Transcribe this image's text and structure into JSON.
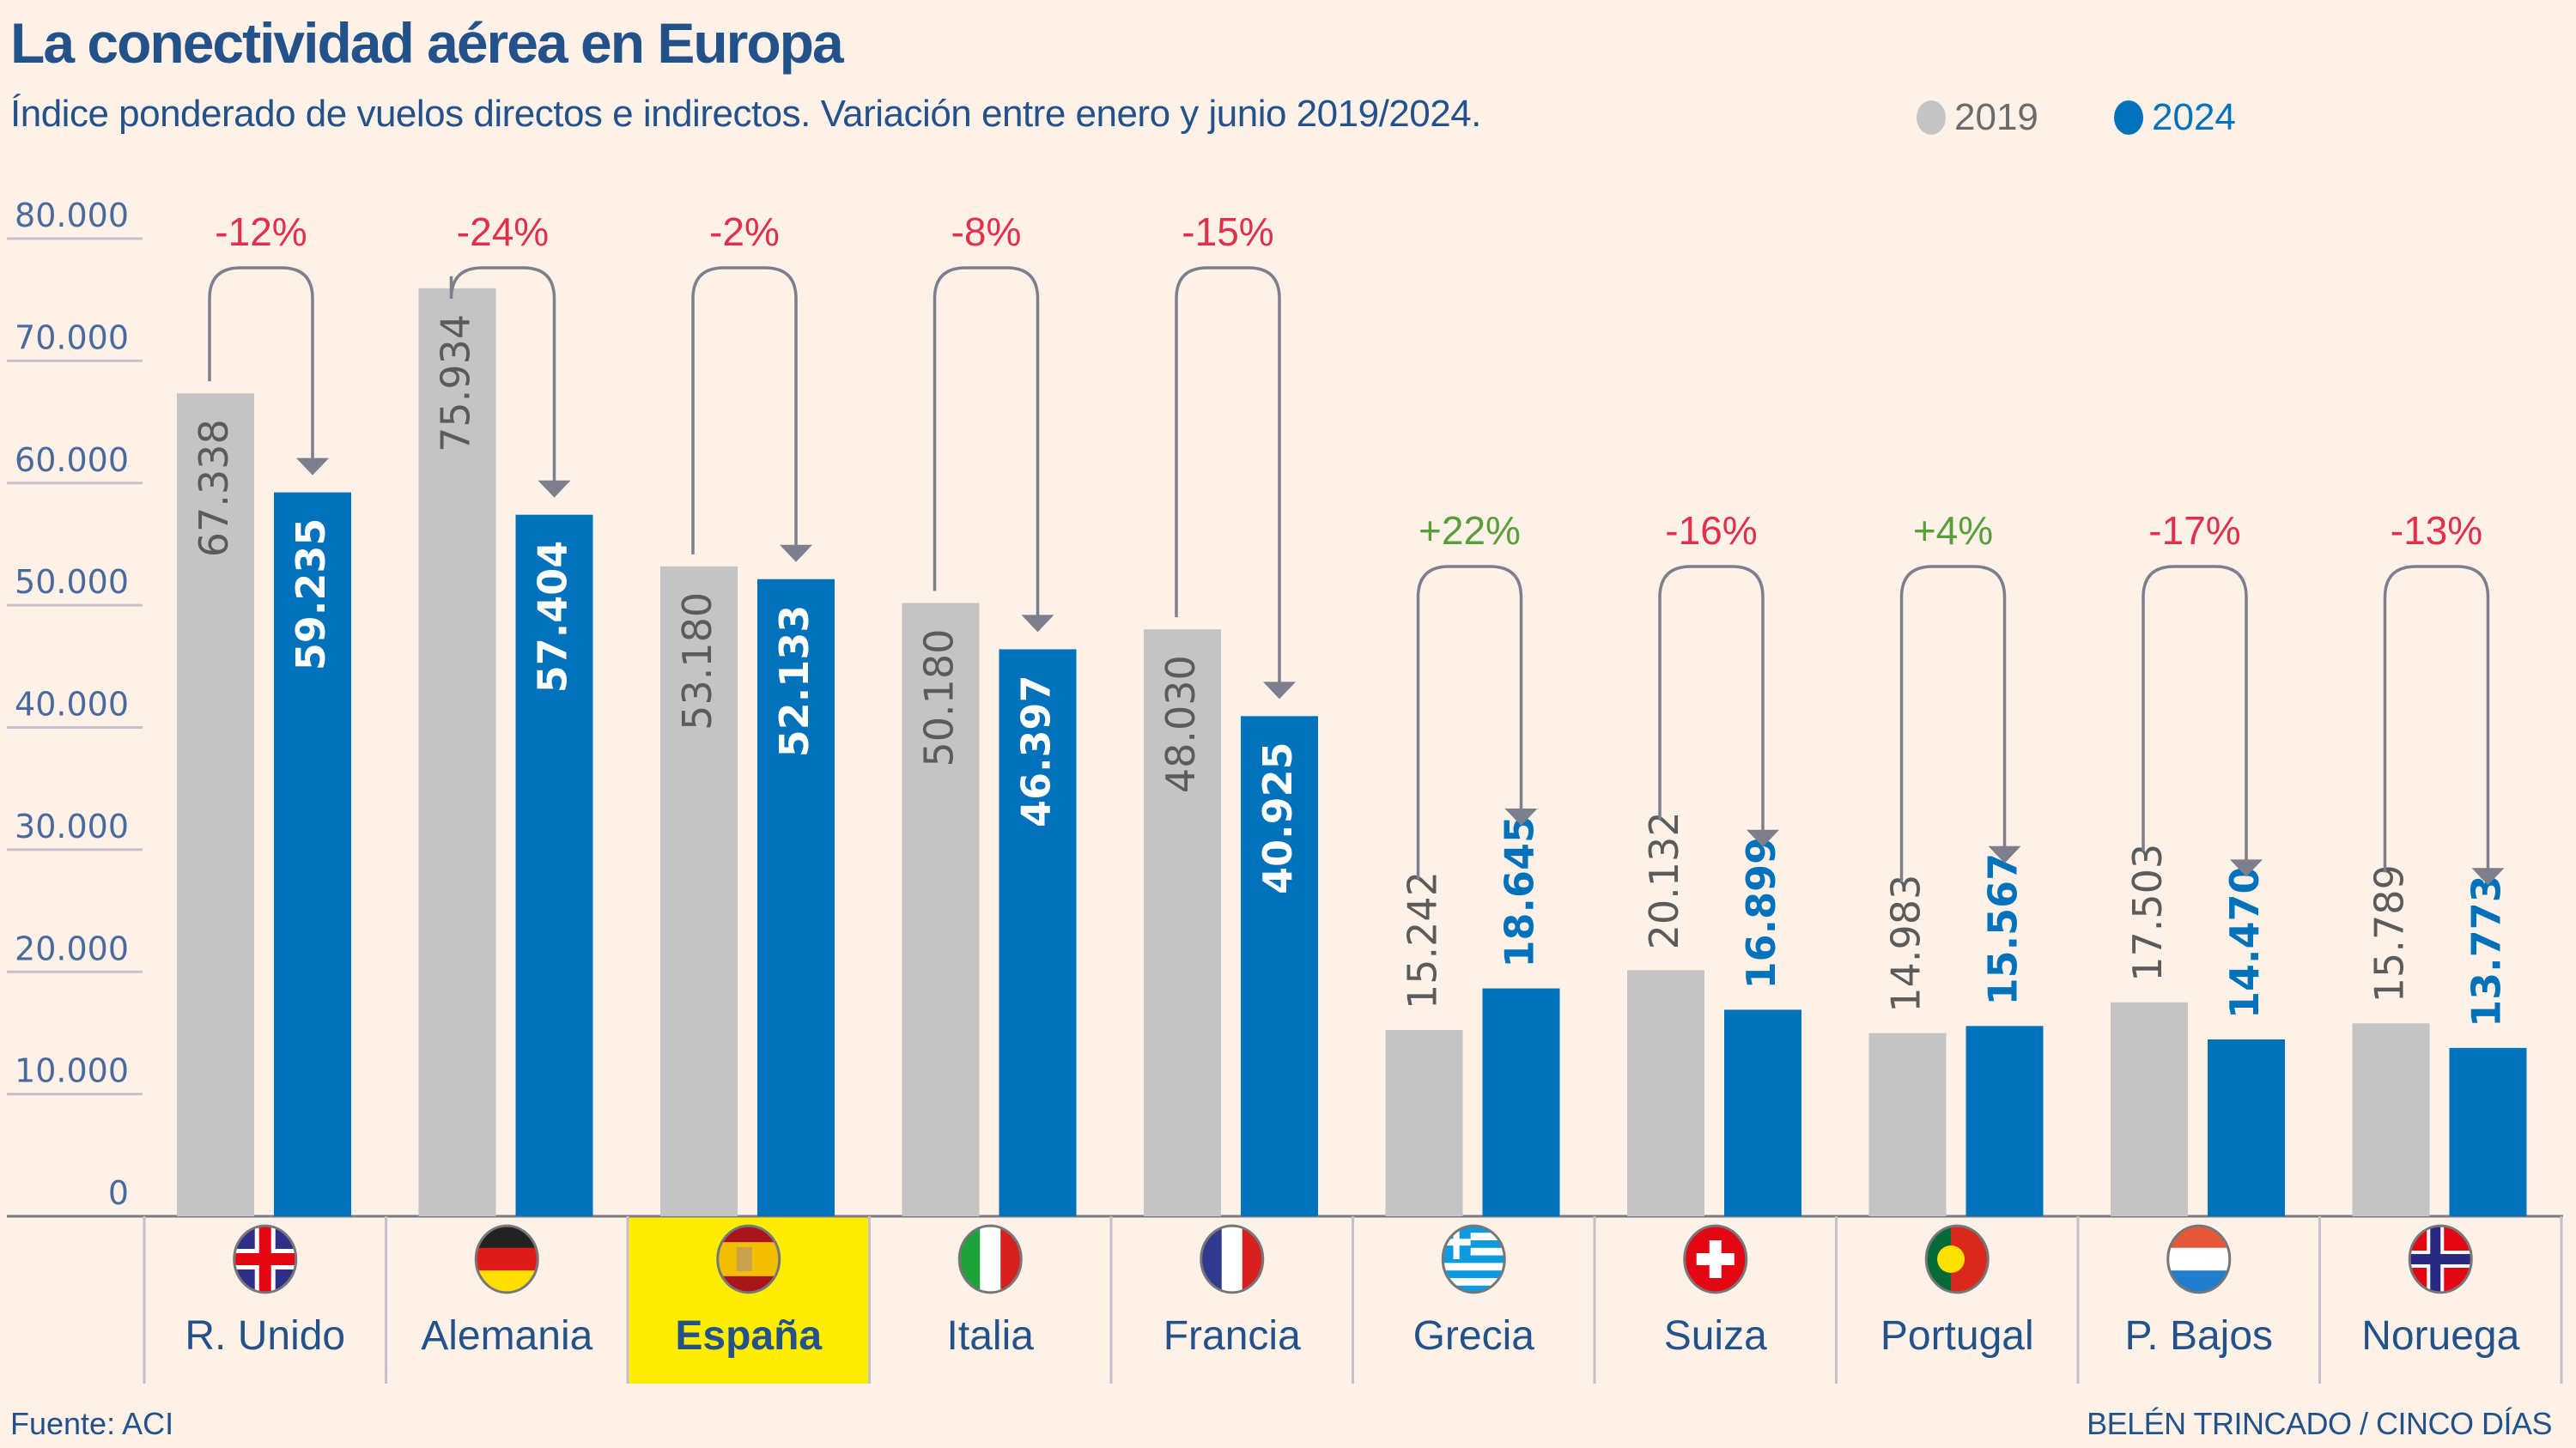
{
  "header": {
    "title": "La conectividad aérea en Europa",
    "subtitle": "Índice ponderado de vuelos directos e indirectos. Variación entre enero y junio 2019/2024."
  },
  "legend": [
    {
      "label": "2019",
      "color": "#c4c4c4",
      "text_color": "#6b6b6b"
    },
    {
      "label": "2024",
      "color": "#0072bb",
      "text_color": "#0072bb"
    }
  ],
  "footer": {
    "source": "Fuente: ACI",
    "credit": "BELÉN TRINCADO / CINCO DÍAS"
  },
  "colors": {
    "bar_2019": "#c4c4c4",
    "bar_2024": "#0072bb",
    "negative": "#e0304a",
    "positive": "#5a9e3a",
    "arrow": "#7d7f8c",
    "axis_text": "#4a6a9e",
    "highlight": "#ffed00",
    "label_text": "#23528a"
  },
  "chart_data": {
    "type": "bar",
    "title": "La conectividad aérea en Europa",
    "xlabel": "",
    "ylabel": "",
    "ylim": [
      0,
      80000
    ],
    "yticks": [
      0,
      10000,
      20000,
      30000,
      40000,
      50000,
      60000,
      70000,
      80000
    ],
    "ytick_labels": [
      "0",
      "10.000",
      "20.000",
      "30.000",
      "40.000",
      "50.000",
      "60.000",
      "70.000",
      "80.000"
    ],
    "grid": true,
    "legend_position": "top-right",
    "categories": [
      "R. Unido",
      "Alemania",
      "España",
      "Italia",
      "Francia",
      "Grecia",
      "Suiza",
      "Portugal",
      "P. Bajos",
      "Noruega"
    ],
    "highlighted_category": "España",
    "flags": [
      "uk-flag",
      "germany-flag",
      "spain-flag",
      "italy-flag",
      "france-flag",
      "greece-flag",
      "switzerland-flag",
      "portugal-flag",
      "netherlands-flag",
      "norway-flag"
    ],
    "series": [
      {
        "name": "2019",
        "values": [
          67338,
          75934,
          53180,
          50180,
          48030,
          15242,
          20132,
          14983,
          17503,
          15789
        ],
        "labels": [
          "67.338",
          "75.934",
          "53.180",
          "50.180",
          "48.030",
          "15.242",
          "20.132",
          "14.983",
          "17.503",
          "15.789"
        ]
      },
      {
        "name": "2024",
        "values": [
          59235,
          57404,
          52133,
          46397,
          40925,
          18645,
          16899,
          15567,
          14470,
          13773
        ],
        "labels": [
          "59.235",
          "57.404",
          "52.133",
          "46.397",
          "40.925",
          "18.645",
          "16.899",
          "15.567",
          "14.470",
          "13.773"
        ]
      }
    ],
    "variation": [
      "-12%",
      "-24%",
      "-2%",
      "-8%",
      "-15%",
      "+22%",
      "-16%",
      "+4%",
      "-17%",
      "-13%"
    ]
  }
}
